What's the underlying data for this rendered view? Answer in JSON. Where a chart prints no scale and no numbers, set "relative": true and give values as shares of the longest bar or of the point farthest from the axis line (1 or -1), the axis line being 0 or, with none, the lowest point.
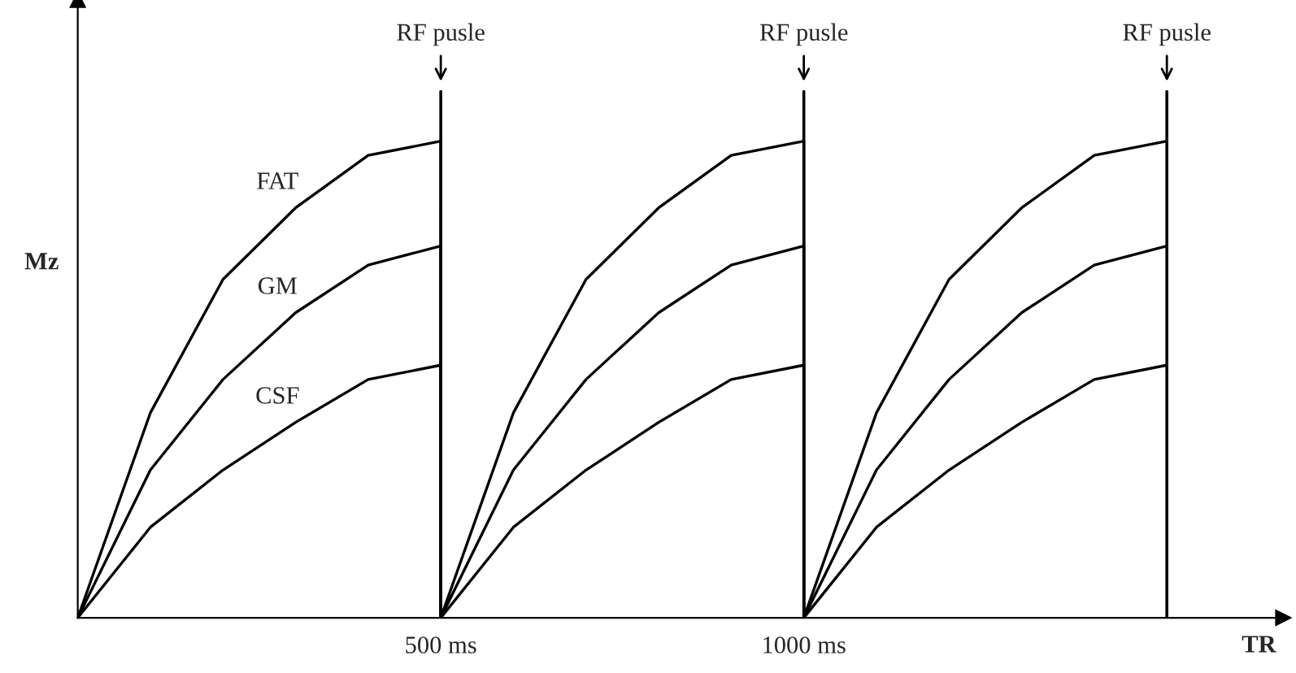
{
  "chart_data": {
    "type": "line",
    "relative": true,
    "xlabel": "TR",
    "ylabel": "Mz",
    "xlim": [
      0,
      1660
    ],
    "xticks": [
      {
        "value": 500,
        "label": "500 ms"
      },
      {
        "value": 1000,
        "label": "1000 ms"
      }
    ],
    "grid": false,
    "legend": false,
    "marker": "none",
    "line_style": "solid",
    "ref_lines": [
      {
        "axis": "x",
        "value": 500,
        "label": "RF pusle",
        "color": "#000000"
      },
      {
        "axis": "x",
        "value": 1000,
        "label": "RF pusle",
        "color": "#000000"
      },
      {
        "axis": "x",
        "value": 1500,
        "label": "RF pusle",
        "color": "#000000"
      }
    ],
    "series": [
      {
        "name": "FAT",
        "color": "#000000",
        "x": [
          0,
          100,
          200,
          300,
          400,
          500,
          500,
          600,
          700,
          800,
          900,
          1000,
          1000,
          1100,
          1200,
          1300,
          1400,
          1500
        ],
        "values": [
          0,
          0.43,
          0.71,
          0.86,
          0.97,
          1,
          0,
          0.43,
          0.71,
          0.86,
          0.97,
          1,
          0,
          0.43,
          0.71,
          0.86,
          0.97,
          1
        ]
      },
      {
        "name": "GM",
        "color": "#000000",
        "x": [
          0,
          100,
          200,
          300,
          400,
          500,
          500,
          600,
          700,
          800,
          900,
          1000,
          1000,
          1100,
          1200,
          1300,
          1400,
          1500
        ],
        "values": [
          0,
          0.31,
          0.5,
          0.64,
          0.74,
          0.78,
          0,
          0.31,
          0.5,
          0.64,
          0.74,
          0.78,
          0,
          0.31,
          0.5,
          0.64,
          0.74,
          0.78
        ]
      },
      {
        "name": "CSF",
        "color": "#000000",
        "x": [
          0,
          100,
          200,
          300,
          400,
          500,
          500,
          600,
          700,
          800,
          900,
          1000,
          1000,
          1100,
          1200,
          1300,
          1400,
          1500
        ],
        "values": [
          0,
          0.19,
          0.31,
          0.41,
          0.5,
          0.53,
          0,
          0.19,
          0.31,
          0.41,
          0.5,
          0.53,
          0,
          0.19,
          0.31,
          0.41,
          0.5,
          0.53
        ]
      }
    ]
  }
}
